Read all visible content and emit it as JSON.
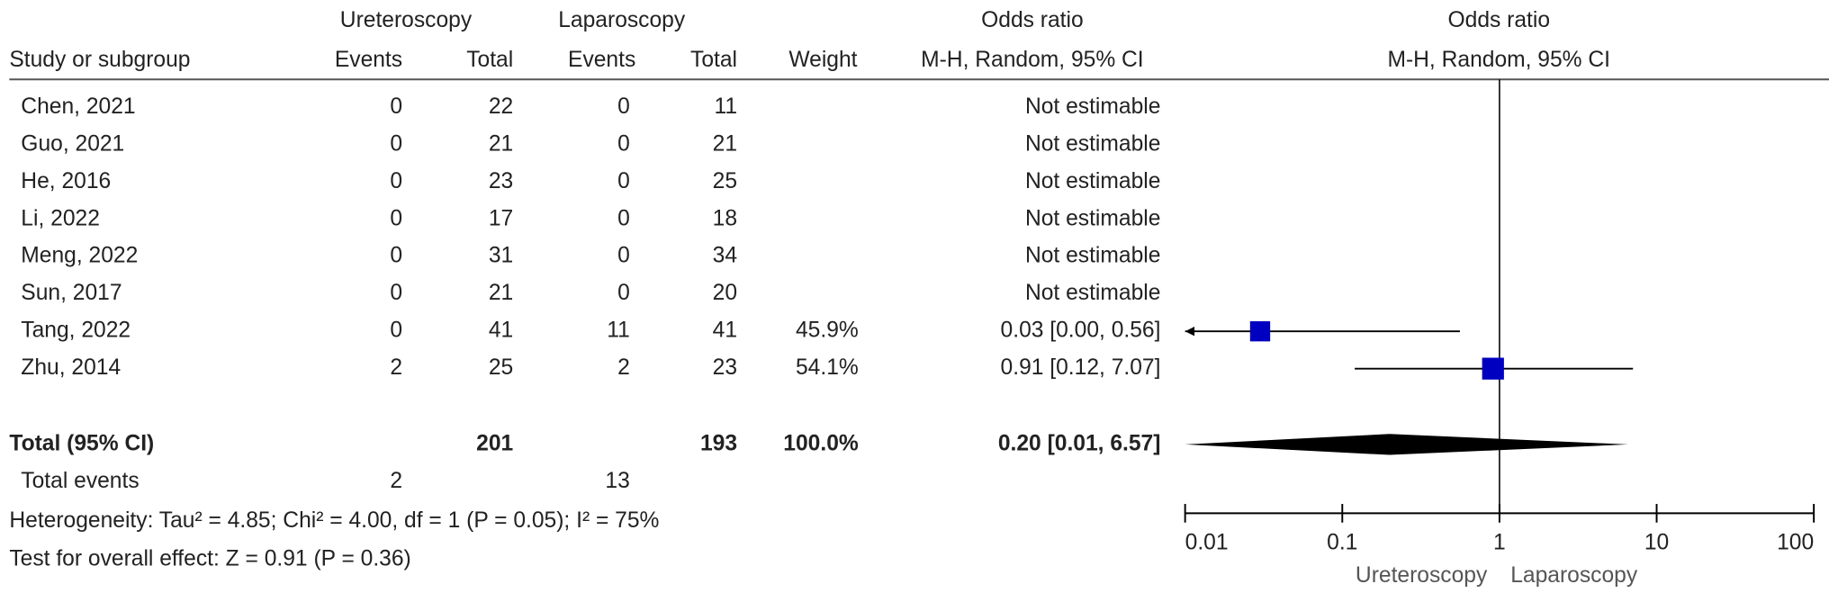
{
  "chart_data": {
    "type": "forest",
    "header": {
      "group1": "Ureteroscopy",
      "group2": "Laparoscopy",
      "or_title_table": "Odds ratio",
      "or_title_plot": "Odds ratio",
      "study_col": "Study or subgroup",
      "events1": "Events",
      "total1": "Total",
      "events2": "Events",
      "total2": "Total",
      "weight": "Weight",
      "method_table": "M-H, Random, 95% CI",
      "method_plot": "M-H, Random, 95% CI"
    },
    "rows": [
      {
        "study": "Chen, 2021",
        "events1": 0,
        "total1": 22,
        "events2": 0,
        "total2": 11,
        "weight": null,
        "weight_label": null,
        "ci_text": "Not estimable",
        "or": null,
        "ci_low": null,
        "ci_high": null
      },
      {
        "study": "Guo, 2021",
        "events1": 0,
        "total1": 21,
        "events2": 0,
        "total2": 21,
        "weight": null,
        "weight_label": null,
        "ci_text": "Not estimable",
        "or": null,
        "ci_low": null,
        "ci_high": null
      },
      {
        "study": "He, 2016",
        "events1": 0,
        "total1": 23,
        "events2": 0,
        "total2": 25,
        "weight": null,
        "weight_label": null,
        "ci_text": "Not estimable",
        "or": null,
        "ci_low": null,
        "ci_high": null
      },
      {
        "study": "Li, 2022",
        "events1": 0,
        "total1": 17,
        "events2": 0,
        "total2": 18,
        "weight": null,
        "weight_label": null,
        "ci_text": "Not estimable",
        "or": null,
        "ci_low": null,
        "ci_high": null
      },
      {
        "study": "Meng, 2022",
        "events1": 0,
        "total1": 31,
        "events2": 0,
        "total2": 34,
        "weight": null,
        "weight_label": null,
        "ci_text": "Not estimable",
        "or": null,
        "ci_low": null,
        "ci_high": null
      },
      {
        "study": "Sun, 2017",
        "events1": 0,
        "total1": 21,
        "events2": 0,
        "total2": 20,
        "weight": null,
        "weight_label": null,
        "ci_text": "Not estimable",
        "or": null,
        "ci_low": null,
        "ci_high": null
      },
      {
        "study": "Tang, 2022",
        "events1": 0,
        "total1": 41,
        "events2": 11,
        "total2": 41,
        "weight": 45.9,
        "weight_label": "45.9%",
        "ci_text": "0.03 [0.00, 0.56]",
        "or": 0.03,
        "ci_low": 0.0,
        "ci_high": 0.56
      },
      {
        "study": "Zhu, 2014",
        "events1": 2,
        "total1": 25,
        "events2": 2,
        "total2": 23,
        "weight": 54.1,
        "weight_label": "54.1%",
        "ci_text": "0.91 [0.12, 7.07]",
        "or": 0.91,
        "ci_low": 0.12,
        "ci_high": 7.07
      }
    ],
    "total": {
      "label": "Total (95% CI)",
      "total1": 201,
      "total2": 193,
      "weight": 100.0,
      "weight_label": "100.0%",
      "ci_text": "0.20 [0.01, 6.57]",
      "or": 0.2,
      "ci_low": 0.01,
      "ci_high": 6.57
    },
    "total_events": {
      "label": "Total events",
      "events1": 2,
      "events2": 13
    },
    "heterogeneity": "Heterogeneity: Tau² = 4.85; Chi² = 4.00, df = 1 (P = 0.05); I² = 75%",
    "overall_effect": "Test for overall effect: Z = 0.91 (P = 0.36)",
    "log_x": true,
    "xlim": [
      0.01,
      100
    ],
    "xticks": [
      0.01,
      0.1,
      1,
      10,
      100
    ],
    "reference_line": 1,
    "xlabel_left": "Ureteroscopy",
    "xlabel_right": "Laparoscopy",
    "square_color": "#0000c0",
    "diamond_color": "#000000"
  }
}
